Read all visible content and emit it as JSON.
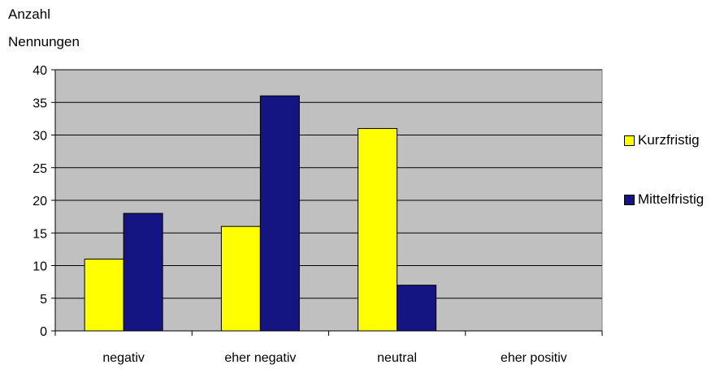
{
  "chart_data": {
    "type": "bar",
    "ylabel_lines": [
      "Anzahl",
      "Nennungen"
    ],
    "categories": [
      "negativ",
      "eher negativ",
      "neutral",
      "eher positiv"
    ],
    "series": [
      {
        "name": "Kurzfristig",
        "values": [
          11,
          16,
          31,
          0
        ],
        "color": "#ffff00"
      },
      {
        "name": "Mittelfristig",
        "values": [
          18,
          36,
          7,
          0
        ],
        "color": "#141482"
      }
    ],
    "ylim": [
      0,
      40
    ],
    "yticks": [
      0,
      5,
      10,
      15,
      20,
      25,
      30,
      35,
      40
    ],
    "grid": true,
    "plot_background": "#c0c0c0",
    "legend_position": "right"
  }
}
